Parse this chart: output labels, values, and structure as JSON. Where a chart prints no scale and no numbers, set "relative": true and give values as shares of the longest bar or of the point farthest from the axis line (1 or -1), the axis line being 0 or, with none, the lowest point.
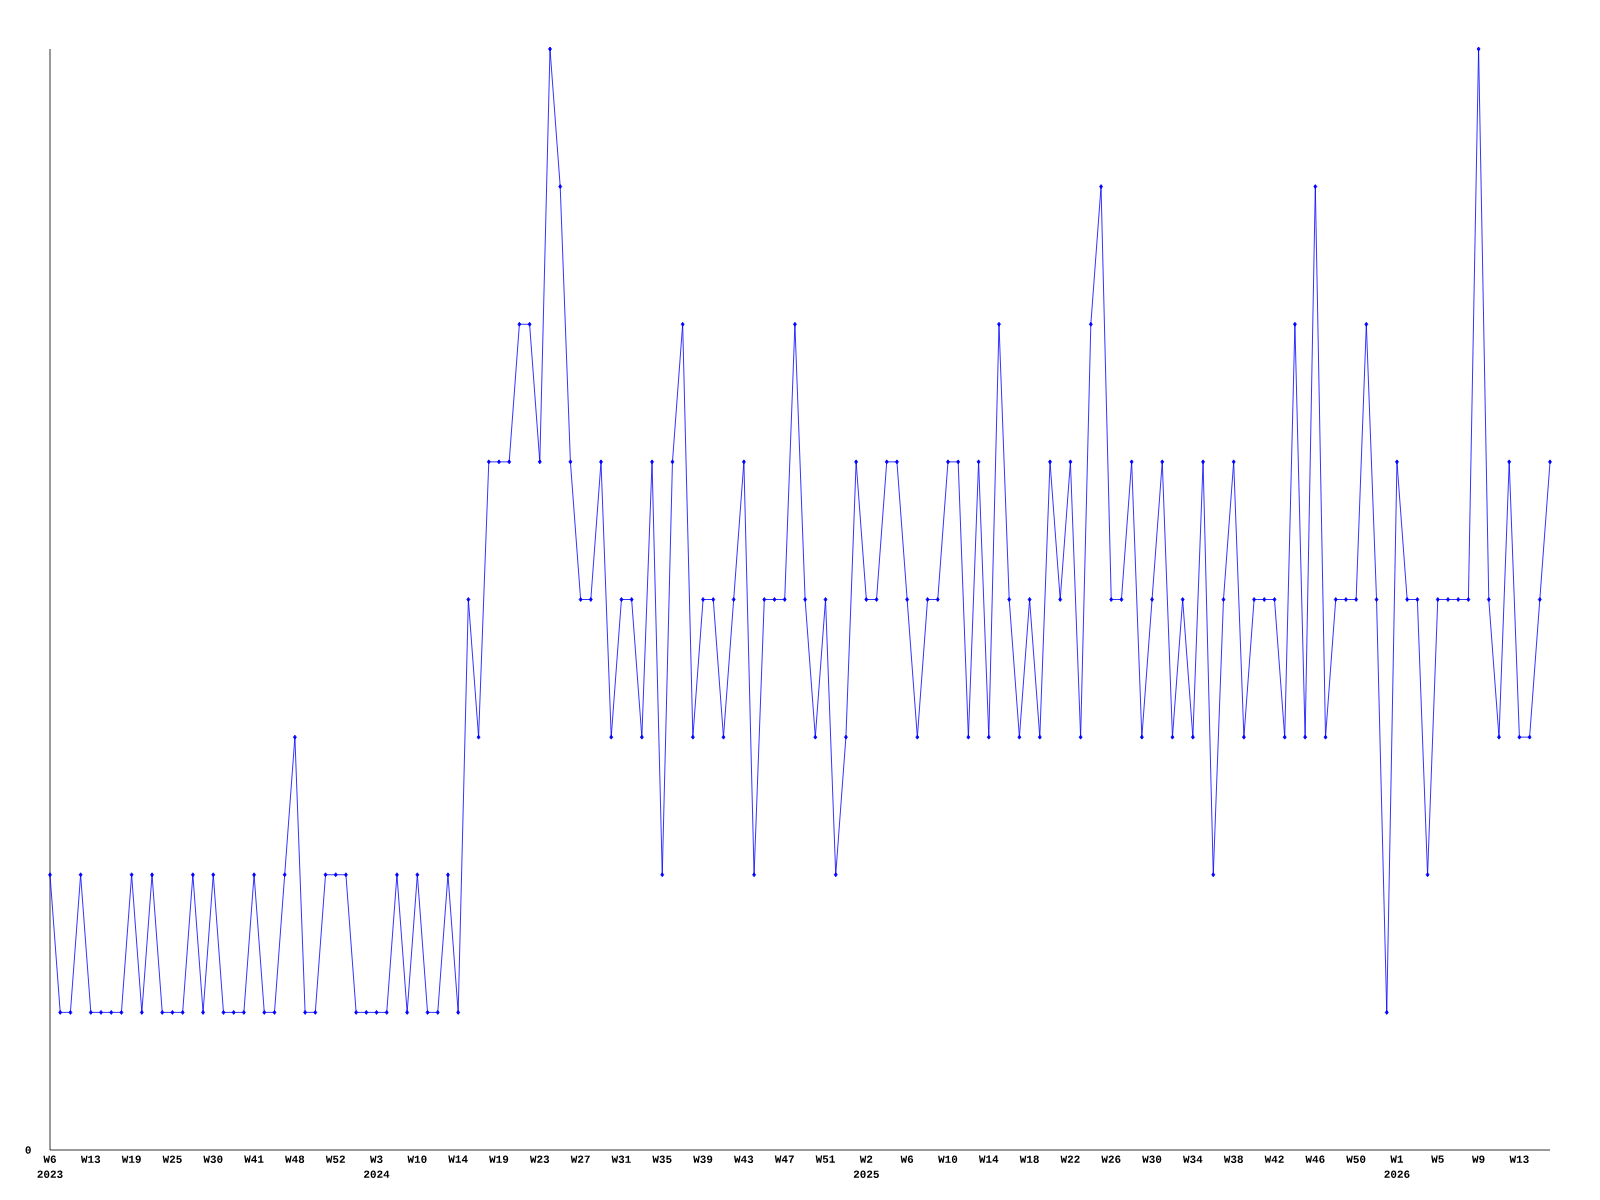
{
  "chart_data": {
    "type": "line",
    "relative": true,
    "color": "#0000ff",
    "marker": "diamond",
    "categories": [
      "W6",
      null,
      null,
      null,
      "W13",
      null,
      null,
      null,
      "W19",
      null,
      null,
      null,
      "W25",
      null,
      null,
      null,
      "W30",
      null,
      null,
      null,
      "W41",
      null,
      null,
      null,
      "W48",
      null,
      null,
      null,
      "W52",
      null,
      null,
      null,
      "W3",
      null,
      null,
      null,
      "W10",
      null,
      null,
      null,
      "W14",
      null,
      null,
      null,
      "W19",
      null,
      null,
      null,
      "W23",
      null,
      null,
      null,
      "W27",
      null,
      null,
      null,
      "W31",
      null,
      null,
      null,
      "W35",
      null,
      null,
      null,
      "W39",
      null,
      null,
      null,
      "W43",
      null,
      null,
      null,
      "W47",
      null,
      null,
      null,
      "W51",
      null,
      null,
      null,
      "W2",
      null,
      null,
      null,
      "W6",
      null,
      null,
      null,
      "W10",
      null,
      null,
      null,
      "W14",
      null,
      null,
      null,
      "W18",
      null,
      null,
      null,
      "W22",
      null,
      null,
      null,
      "W26",
      null,
      null,
      null,
      "W30",
      null,
      null,
      null,
      "W34",
      null,
      null,
      null,
      "W38",
      null,
      null,
      null,
      "W42",
      null,
      null,
      null,
      "W46",
      null,
      null,
      null,
      "W50",
      null,
      null,
      null,
      "W1",
      null,
      null,
      null,
      "W5",
      null,
      null,
      null,
      "W9",
      null,
      null,
      null,
      "W13",
      null,
      null,
      null
    ],
    "values": [
      0.25,
      0.125,
      0.125,
      0.25,
      0.125,
      0.125,
      0.125,
      0.125,
      0.25,
      0.125,
      0.25,
      0.125,
      0.125,
      0.125,
      0.25,
      0.125,
      0.25,
      0.125,
      0.125,
      0.125,
      0.25,
      0.125,
      0.125,
      0.25,
      0.375,
      0.125,
      0.125,
      0.25,
      0.25,
      0.25,
      0.125,
      0.125,
      0.125,
      0.125,
      0.25,
      0.125,
      0.25,
      0.125,
      0.125,
      0.25,
      0.125,
      0.5,
      0.375,
      0.625,
      0.625,
      0.625,
      0.75,
      0.75,
      0.625,
      1,
      0.875,
      0.625,
      0.5,
      0.5,
      0.625,
      0.375,
      0.5,
      0.5,
      0.375,
      0.625,
      0.25,
      0.625,
      0.75,
      0.375,
      0.5,
      0.5,
      0.375,
      0.5,
      0.625,
      0.25,
      0.5,
      0.5,
      0.5,
      0.75,
      0.5,
      0.375,
      0.5,
      0.25,
      0.375,
      0.625,
      0.5,
      0.5,
      0.625,
      0.625,
      0.5,
      0.375,
      0.5,
      0.5,
      0.625,
      0.625,
      0.375,
      0.625,
      0.375,
      0.75,
      0.5,
      0.375,
      0.5,
      0.375,
      0.625,
      0.5,
      0.625,
      0.375,
      0.75,
      0.875,
      0.5,
      0.5,
      0.625,
      0.375,
      0.5,
      0.625,
      0.375,
      0.5,
      0.375,
      0.625,
      0.25,
      0.5,
      0.625,
      0.375,
      0.5,
      0.5,
      0.5,
      0.375,
      0.75,
      0.375,
      0.875,
      0.375,
      0.5,
      0.5,
      0.5,
      0.75,
      0.5,
      0.125,
      0.625,
      0.5,
      0.5,
      0.25,
      0.5,
      0.5,
      0.5,
      0.5,
      1,
      0.5,
      0.375,
      0.625,
      0.375,
      0.375,
      0.5,
      0.625
    ],
    "annotations": [
      "0",
      "2023",
      "2024",
      "2025",
      "2026"
    ]
  }
}
